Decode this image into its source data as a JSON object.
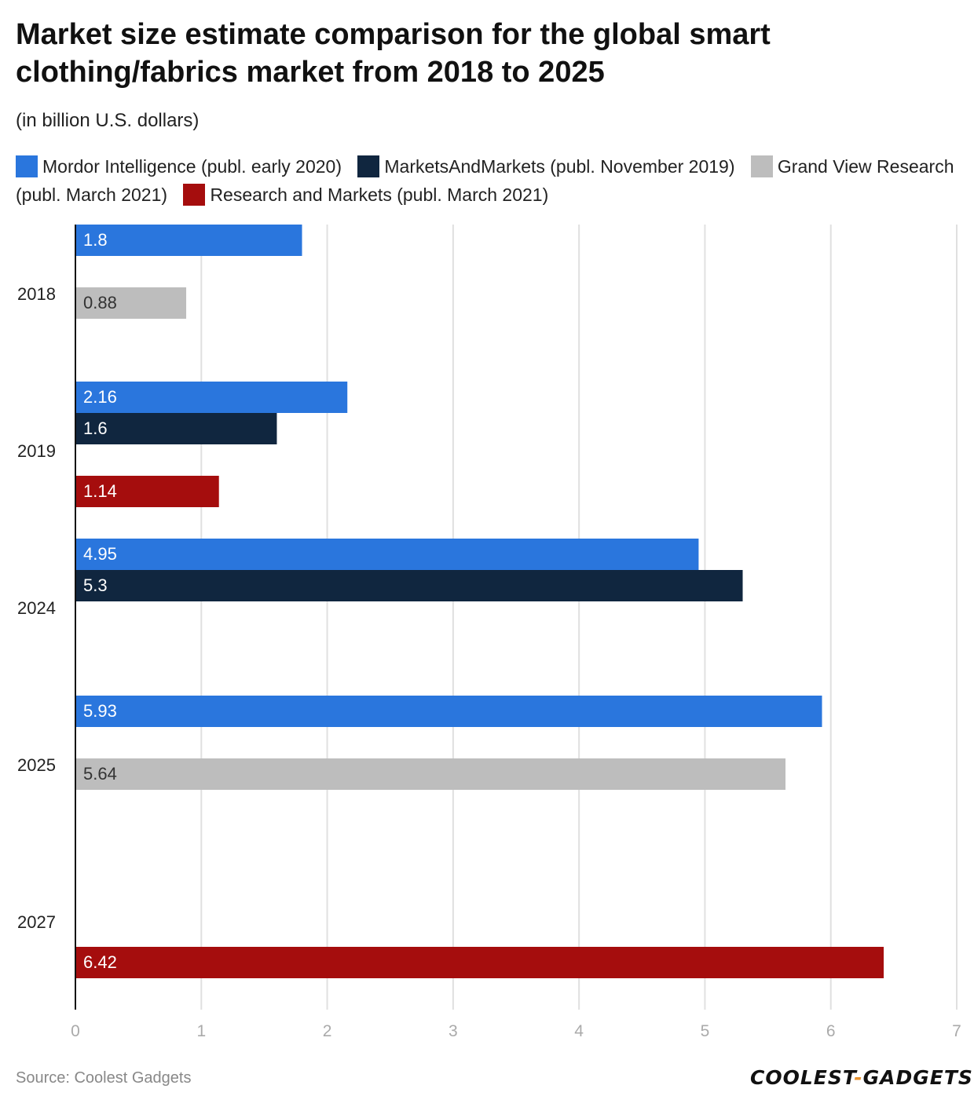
{
  "chart_data": {
    "type": "bar",
    "orientation": "horizontal",
    "title": "Market size estimate comparison for the global smart clothing/fabrics market from 2018 to 2025",
    "subtitle": "(in billion U.S. dollars)",
    "categories": [
      "2018",
      "2019",
      "2024",
      "2025",
      "2027"
    ],
    "series": [
      {
        "name": "Mordor Intelligence (publ. early 2020)",
        "color": "#2a76dd",
        "values": [
          1.8,
          2.16,
          4.95,
          5.93,
          null
        ]
      },
      {
        "name": "MarketsAndMarkets (publ. November 2019)",
        "color": "#10263f",
        "values": [
          null,
          1.6,
          5.3,
          null,
          null
        ]
      },
      {
        "name": "Grand View Research (publ. March 2021)",
        "color": "#bdbdbd",
        "values": [
          0.88,
          null,
          null,
          5.64,
          null
        ]
      },
      {
        "name": "Research and Markets (publ. March 2021)",
        "color": "#a50d0d",
        "values": [
          null,
          1.14,
          null,
          null,
          6.42
        ]
      }
    ],
    "xlim": [
      0,
      7
    ],
    "xticks": [
      "0",
      "1",
      "2",
      "3",
      "4",
      "5",
      "6",
      "7"
    ],
    "grid": true,
    "legend": "top"
  },
  "source": "Source: Coolest Gadgets",
  "logo": {
    "part1": "COOLEST",
    "dash": "-",
    "part2": "GADGETS"
  }
}
